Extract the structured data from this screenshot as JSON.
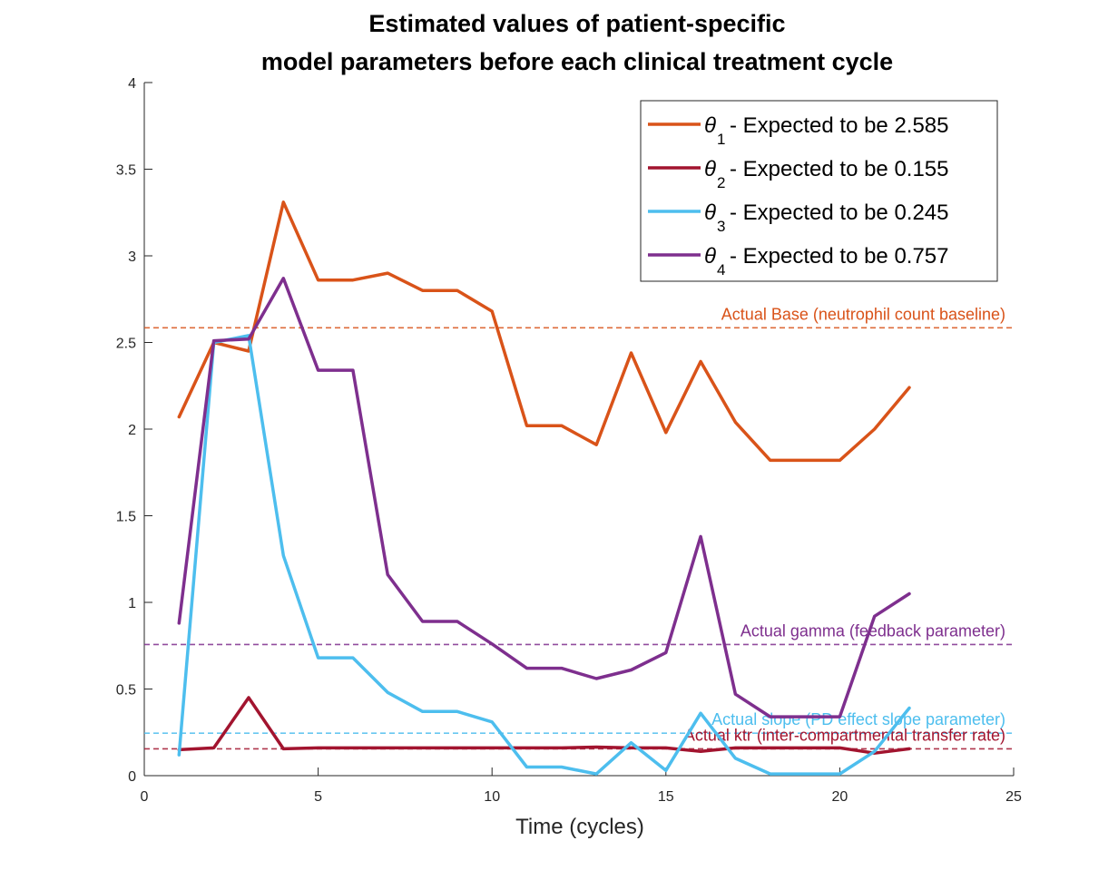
{
  "chart_data": {
    "type": "line",
    "title": [
      "Estimated values of patient-specific",
      "model parameters before each clinical treatment cycle"
    ],
    "xlabel": "Time (cycles)",
    "ylabel": "",
    "xlim": [
      0,
      25
    ],
    "ylim": [
      0,
      4
    ],
    "xticks": [
      0,
      5,
      10,
      15,
      20,
      25
    ],
    "yticks": [
      0,
      0.5,
      1,
      1.5,
      2,
      2.5,
      3,
      3.5,
      4
    ],
    "xtick_labels": [
      "0",
      "5",
      "10",
      "15",
      "20",
      "25"
    ],
    "ytick_labels": [
      "0",
      "0.5",
      "1",
      "1.5",
      "2",
      "2.5",
      "3",
      "3.5",
      "4"
    ],
    "grid": false,
    "legend_position": "top-right",
    "x": [
      1,
      2,
      3,
      4,
      5,
      6,
      7,
      8,
      9,
      10,
      11,
      12,
      13,
      14,
      15,
      16,
      17,
      18,
      19,
      20,
      21,
      22
    ],
    "series": [
      {
        "symbol": "θ",
        "subscript": "1",
        "legend_suffix": " - Expected to be 2.585",
        "color": "#D95319",
        "values": [
          2.07,
          2.5,
          2.45,
          3.31,
          2.86,
          2.86,
          2.9,
          2.8,
          2.8,
          2.68,
          2.02,
          2.02,
          1.91,
          2.44,
          1.98,
          2.39,
          2.04,
          1.82,
          1.82,
          1.82,
          2.0,
          2.24
        ]
      },
      {
        "symbol": "θ",
        "subscript": "2",
        "legend_suffix": " - Expected to be 0.155",
        "color": "#A2142F",
        "values": [
          0.15,
          0.16,
          0.45,
          0.155,
          0.16,
          0.16,
          0.16,
          0.16,
          0.16,
          0.16,
          0.16,
          0.16,
          0.165,
          0.16,
          0.16,
          0.14,
          0.16,
          0.16,
          0.16,
          0.16,
          0.13,
          0.155
        ]
      },
      {
        "symbol": "θ",
        "subscript": "3",
        "legend_suffix": " - Expected to be 0.245",
        "color": "#4DBEEE",
        "values": [
          0.12,
          2.5,
          2.54,
          1.27,
          0.68,
          0.68,
          0.48,
          0.37,
          0.37,
          0.31,
          0.05,
          0.05,
          0.01,
          0.19,
          0.03,
          0.36,
          0.1,
          0.01,
          0.01,
          0.01,
          0.14,
          0.39
        ]
      },
      {
        "symbol": "θ",
        "subscript": "4",
        "legend_suffix": " - Expected to be 0.757",
        "color": "#7E2F8E",
        "values": [
          0.88,
          2.51,
          2.52,
          2.87,
          2.34,
          2.34,
          1.16,
          0.89,
          0.89,
          0.76,
          0.62,
          0.62,
          0.56,
          0.61,
          0.71,
          1.38,
          0.47,
          0.34,
          0.34,
          0.34,
          0.92,
          1.05
        ]
      }
    ],
    "reference_lines": [
      {
        "label": "Actual Base (neutrophil count baseline)",
        "value": 2.585,
        "color": "#D95319"
      },
      {
        "label": "Actual gamma (feedback parameter)",
        "value": 0.757,
        "color": "#7E2F8E"
      },
      {
        "label": "Actual slope (PD effect slope parameter)",
        "value": 0.245,
        "color": "#4DBEEE"
      },
      {
        "label": "Actual ktr (inter-compartmental transfer rate)",
        "value": 0.155,
        "color": "#A2142F"
      }
    ]
  }
}
